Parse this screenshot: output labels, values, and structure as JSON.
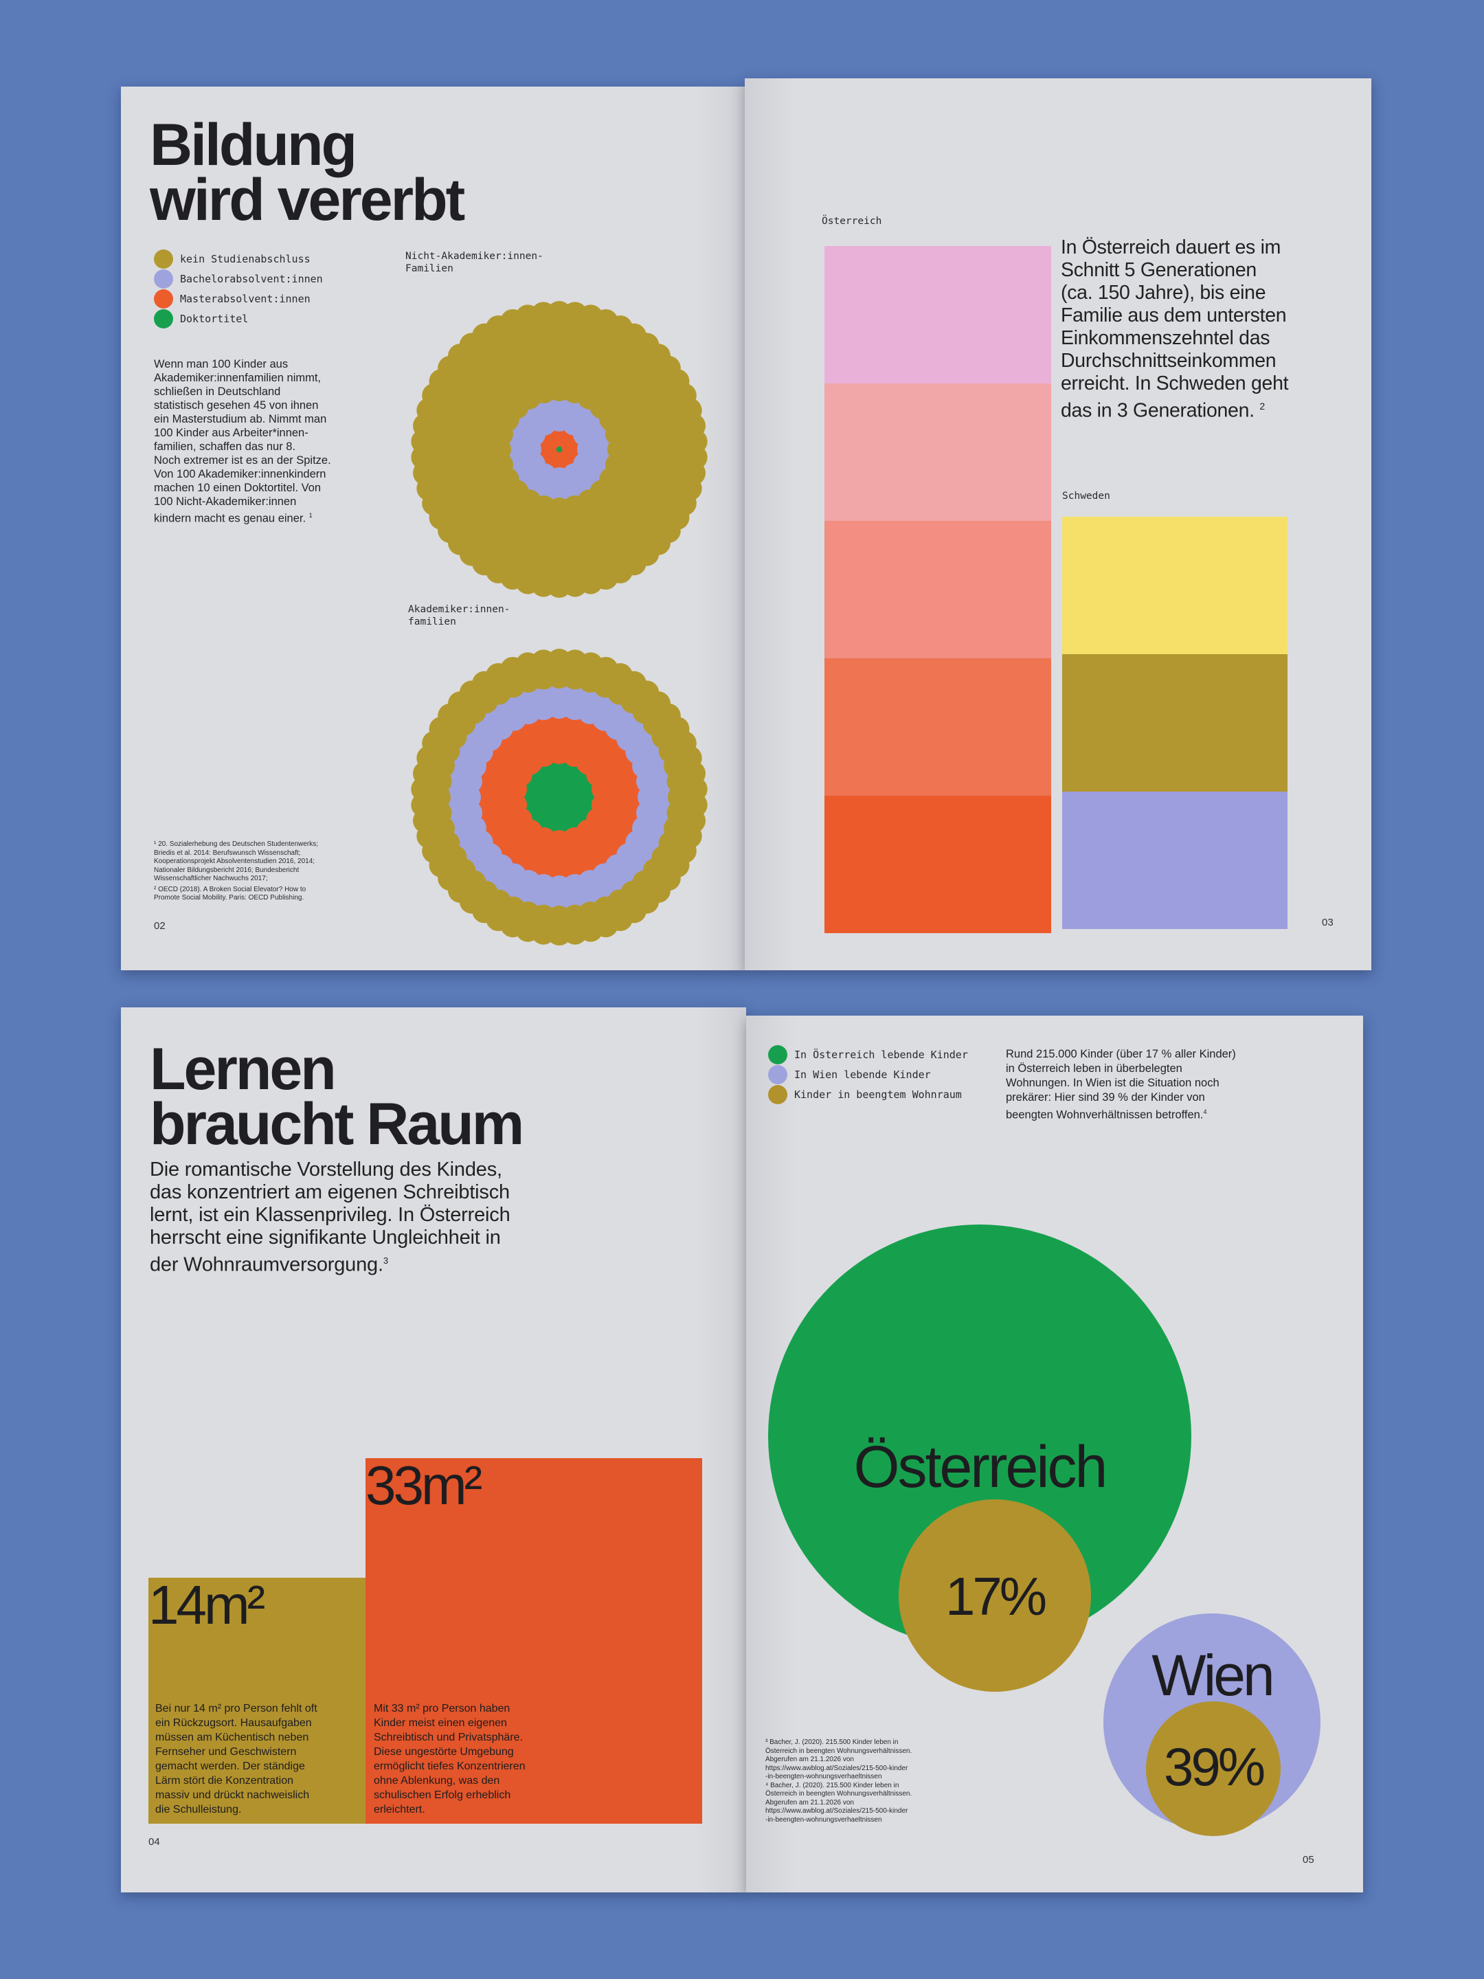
{
  "spread1": {
    "left": {
      "title_line1": "Bildung",
      "title_line2": "wird vererbt",
      "legend": [
        {
          "label": "kein Studienabschluss",
          "color": "#b2992f"
        },
        {
          "label": "Bachelorabsolvent:innen",
          "color": "#9ea3dd"
        },
        {
          "label": "Masterabsolvent:innen",
          "color": "#ec5d2c"
        },
        {
          "label": "Doktortitel",
          "color": "#16a04e"
        }
      ],
      "body_lines": [
        "Wenn man 100 Kinder aus",
        "Akademiker:innenfamilien nimmt,",
        "schließen in Deutschland",
        "statistisch gesehen 45 von ihnen",
        "ein Masterstudium ab. Nimmt man",
        "100 Kinder aus Arbeiter*innen-",
        "familien, schaffen das nur 8.",
        "Noch extremer ist es an der Spitze.",
        "Von 100 Akademiker:innenkindern",
        "machen 10 einen Doktortitel. Von",
        "100 Nicht-Akademiker:innen",
        "kindern macht es genau einer."
      ],
      "body_ref": "1",
      "chart1_label_line1": "Nicht-Akademiker:innen-",
      "chart1_label_line2": "Familien",
      "chart2_label_line1": "Akademiker:innen-",
      "chart2_label_line2": "familien",
      "footnotes": [
        "¹ 20. Sozialerhebung des Deutschen Studentenwerks;",
        "Briedis et al. 2014: Berufswunsch Wissenschaft;",
        "Kooperationsprojekt Absolventenstudien 2016, 2014;",
        "Nationaler Bildungsbericht 2016; Bundesbericht",
        "Wissenschaftlicher Nachwuchs 2017;",
        "² OECD (2018). A Broken Social Elevator? How to",
        "Promote Social Mobility. Paris: OECD Publishing."
      ],
      "page_number": "02"
    },
    "right": {
      "austria_label": "Österreich",
      "sweden_label": "Schweden",
      "text_lines": [
        "In Österreich dauert es im",
        "Schnitt 5 Generationen",
        "(ca. 150 Jahre), bis eine",
        "Familie aus dem untersten",
        "Einkommenszehntel das",
        "Durchschnittseinkommen",
        "erreicht. In Schweden geht",
        "das in 3 Generationen."
      ],
      "text_ref": "2",
      "page_number": "03"
    }
  },
  "spread2": {
    "left": {
      "title_line1": "Lernen",
      "title_line2": "braucht Raum",
      "lead_lines": [
        "Die romantische Vorstellung des Kindes,",
        "das konzentriert am eigenen Schreibtisch",
        "lernt, ist ein Klassenprivileg. In Österreich",
        "herrscht eine signifikante Ungleichheit in",
        "der Wohnraumversorgung."
      ],
      "lead_ref": "3",
      "area_small_value": "14m²",
      "area_small_color": "#b2922d",
      "area_small_desc": [
        "Bei nur 14 m² pro Person fehlt oft",
        "ein Rückzugsort. Hausaufgaben",
        "müssen am Küchentisch neben",
        "Fernseher und Geschwistern",
        "gemacht werden. Der ständige",
        "Lärm stört die Konzentration",
        "massiv und drückt nachweislich",
        "die Schulleistung."
      ],
      "area_large_value": "33m²",
      "area_large_color": "#e3552a",
      "area_large_desc": [
        "Mit 33 m² pro Person haben",
        "Kinder meist einen eigenen",
        "Schreibtisch und Privatsphäre.",
        "Diese ungestörte Umgebung",
        "ermöglicht tiefes Konzentrieren",
        "ohne Ablenkung, was den",
        "schulischen Erfolg erheblich",
        "erleichtert."
      ],
      "page_number": "04"
    },
    "right": {
      "legend": [
        {
          "label": "In Österreich lebende Kinder",
          "color": "#16a04e"
        },
        {
          "label": "In Wien lebende Kinder",
          "color": "#9ea3dd"
        },
        {
          "label": "Kinder in beengtem Wohnraum",
          "color": "#b2922d"
        }
      ],
      "info_lines": [
        "Rund 215.000 Kinder (über 17 % aller Kinder)",
        "in Österreich leben in überbelegten",
        "Wohnungen. In Wien ist die Situation noch",
        "prekärer: Hier sind 39 % der Kinder von",
        "beengten Wohnverhältnissen betroffen."
      ],
      "info_ref": "4",
      "austria_label": "Österreich",
      "austria_pct": "17%",
      "vienna_label": "Wien",
      "vienna_pct": "39%",
      "austria_share": 0.17,
      "vienna_share": 0.39,
      "footnotes": [
        "³ Bacher, J. (2020). 215.500 Kinder leben in",
        "Österreich in beengten Wohnungsverhältnissen.",
        "Abgerufen am 21.1.2026 von",
        "https://www.awblog.at/Soziales/215-500-kinder",
        "-in-beengten-wohnungsverhaeltnissen",
        "⁴ Bacher, J. (2020). 215.500 Kinder leben in",
        "Österreich in beengten Wohnungsverhältnissen.",
        "Abgerufen am 21.1.2026 von",
        "https://www.awblog.at/Soziales/215-500-kinder",
        "-in-beengten-wohnungsverhaeltnissen"
      ],
      "page_number": "05"
    }
  }
}
